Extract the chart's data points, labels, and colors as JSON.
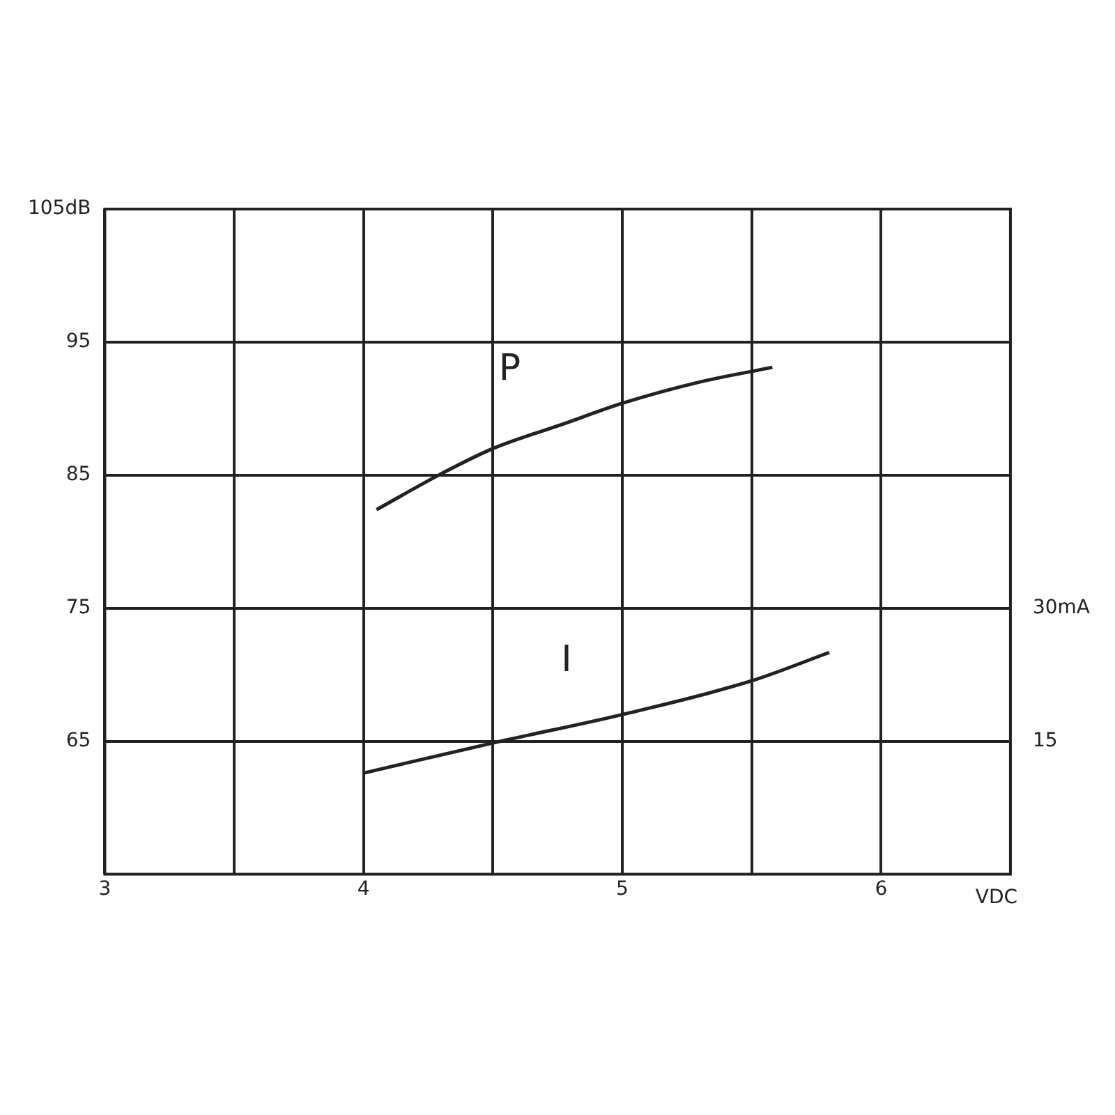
{
  "chart_data": {
    "type": "line",
    "xlabel": "VDC",
    "xlim": [
      3,
      6.5
    ],
    "xticks": [
      3,
      {
        "value": 3.5,
        "label": null
      },
      4,
      {
        "value": 4.5,
        "label": null
      },
      5,
      {
        "value": 5.5,
        "label": null
      },
      6
    ],
    "ylim": [
      55,
      105
    ],
    "yticks": [
      65,
      75,
      85,
      95,
      {
        "value": 105,
        "label": "105dB"
      }
    ],
    "y2lim": [
      0,
      75
    ],
    "y2ticks": [
      15,
      {
        "value": 30,
        "label": "30mA"
      }
    ],
    "grid": true,
    "legend": false,
    "marker": "none",
    "line_style": "solid",
    "series": [
      {
        "name": "P",
        "color": "#222222",
        "x": [
          4.05,
          4.3,
          4.5,
          4.78,
          5.0,
          5.3,
          5.58
        ],
        "values": [
          82.4,
          85.1,
          87.0,
          88.9,
          90.4,
          92.0,
          93.1
        ]
      },
      {
        "name": "I",
        "color": "#222222",
        "axis": "y2",
        "x": [
          4.0,
          4.5,
          5.0,
          5.5,
          5.8
        ],
        "values": [
          11.4,
          14.8,
          18.0,
          21.8,
          25.0
        ]
      }
    ]
  }
}
